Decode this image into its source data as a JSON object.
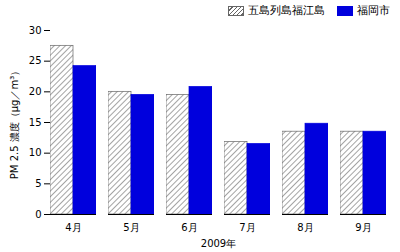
{
  "chart_data": {
    "type": "bar",
    "categories": [
      "4月",
      "5月",
      "6月",
      "7月",
      "8月",
      "9月"
    ],
    "series": [
      {
        "name": "五島列島福江島",
        "color": "#666666",
        "values": [
          27.5,
          20.0,
          19.5,
          11.8,
          13.5,
          13.5
        ]
      },
      {
        "name": "福岡市",
        "color": "#0000dd",
        "values": [
          24.2,
          19.5,
          20.8,
          11.5,
          14.8,
          13.5
        ]
      }
    ],
    "xlabel": "2009年",
    "ylabel": "PM 2.5 濃度（μg／m³）",
    "ylim": [
      0,
      30
    ],
    "yticks": [
      0,
      5,
      10,
      15,
      20,
      25,
      30
    ],
    "grid": false,
    "legend": "upper right"
  }
}
